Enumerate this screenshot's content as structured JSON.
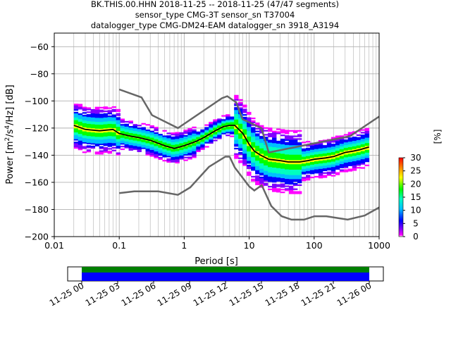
{
  "title_lines": [
    "BK.THIS.00.HHN   2018-11-25 -- 2018-11-25  (47/47 segments)",
    "sensor_type CMG-3T sensor_sn T37004",
    "datalogger_type CMG-DM24-EAM datalogger_sn 3918_A3194"
  ],
  "chart_data": {
    "type": "heatmap",
    "xlabel": "Period [s]",
    "ylabel": "Power [m²/s⁴/Hz] [dB]",
    "ylabel_parts": [
      "Power [m",
      "2",
      "/s",
      "4",
      "/Hz] [dB]"
    ],
    "x_scale": "log",
    "xlim": [
      0.01,
      1000
    ],
    "ylim": [
      -200,
      -50
    ],
    "x_ticks": [
      {
        "value": 0.01,
        "label": "0.01"
      },
      {
        "value": 0.1,
        "label": "0.1"
      },
      {
        "value": 1,
        "label": "1"
      },
      {
        "value": 10,
        "label": "10"
      },
      {
        "value": 100,
        "label": "100"
      },
      {
        "value": 1000,
        "label": "1000"
      }
    ],
    "y_ticks": [
      {
        "value": -60,
        "label": "−60"
      },
      {
        "value": -80,
        "label": "−80"
      },
      {
        "value": -100,
        "label": "−100"
      },
      {
        "value": -120,
        "label": "−120"
      },
      {
        "value": -140,
        "label": "−140"
      },
      {
        "value": -160,
        "label": "−160"
      },
      {
        "value": -180,
        "label": "−180"
      },
      {
        "value": -200,
        "label": "−200"
      }
    ],
    "grid": true,
    "colorbar": {
      "label": "[%]",
      "range": [
        0,
        30
      ],
      "ticks": [
        {
          "value": 0,
          "label": "0"
        },
        {
          "value": 5,
          "label": "5"
        },
        {
          "value": 10,
          "label": "10"
        },
        {
          "value": 15,
          "label": "15"
        },
        {
          "value": 20,
          "label": "20"
        },
        {
          "value": 25,
          "label": "25"
        },
        {
          "value": 30,
          "label": "30"
        }
      ]
    },
    "noise_model_high": {
      "color": "#666666",
      "x": [
        0.1,
        0.22,
        0.32,
        0.8,
        3.8,
        4.6,
        6.3,
        7.9,
        15.4,
        20,
        354.8,
        1000
      ],
      "y": [
        -91.5,
        -97.4,
        -110.5,
        -120.0,
        -98.0,
        -96.5,
        -101.0,
        -113.5,
        -120.0,
        -138.0,
        -126.0,
        -111.5
      ]
    },
    "noise_model_low": {
      "color": "#666666",
      "x": [
        0.1,
        0.17,
        0.4,
        0.8,
        1.24,
        2.4,
        4.3,
        5.0,
        6.0,
        10.0,
        12.0,
        15.6,
        21.9,
        31.6,
        45.0,
        70.0,
        101.0,
        154.0,
        328.0,
        600.0,
        1000.0
      ],
      "y": [
        -168.0,
        -166.7,
        -166.7,
        -169.2,
        -163.7,
        -148.6,
        -141.1,
        -141.1,
        -149.0,
        -163.0,
        -166.0,
        -162.1,
        -177.5,
        -185.0,
        -187.5,
        -187.5,
        -185.0,
        -185.0,
        -187.5,
        -184.5,
        -178.5
      ]
    },
    "mean_psd": {
      "color": "#000000",
      "x": [
        0.02,
        0.03,
        0.05,
        0.08,
        0.1,
        0.15,
        0.2,
        0.3,
        0.5,
        0.7,
        1.0,
        1.5,
        2.0,
        3.0,
        4.0,
        5.0,
        6.0,
        8.0,
        10.0,
        12.0,
        15.0,
        20.0,
        30.0,
        40.0,
        60.0,
        80.0,
        100.0,
        150.0,
        200.0,
        300.0,
        400.0,
        500.0,
        700.0
      ],
      "y": [
        -118,
        -121,
        -122,
        -121,
        -124,
        -126,
        -127,
        -129,
        -133,
        -135,
        -133,
        -130,
        -127,
        -122,
        -119,
        -118,
        -118,
        -124,
        -132,
        -137,
        -140,
        -143,
        -144,
        -145,
        -145,
        -144,
        -143,
        -142,
        -141,
        -138,
        -137,
        -136,
        -134
      ]
    },
    "heatmap_note_levels": [
      0,
      30
    ],
    "timeline": {
      "ticks": [
        "11-25 00",
        "11-25 03",
        "11-25 06",
        "11-25 09",
        "11-25 12",
        "11-25 15",
        "11-25 18",
        "11-25 21",
        "11-26 00"
      ],
      "data_color": "#0000ff",
      "coverage_color": "#008000"
    }
  }
}
